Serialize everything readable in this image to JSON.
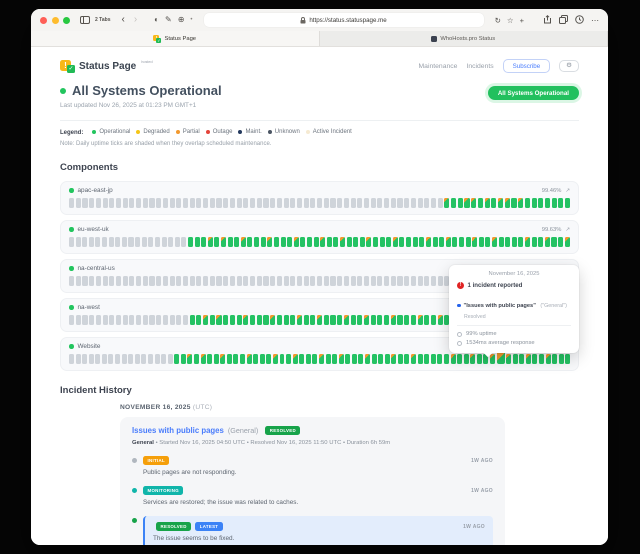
{
  "browser": {
    "tabs_count": "2 Tabs",
    "url": "https://status.statuspage.me",
    "tab1": "Status Page",
    "tab2": "WhoHosts.pro Status"
  },
  "header": {
    "brand": "Status Page",
    "brand_sup": "hosted",
    "nav": {
      "maintenance": "Maintenance",
      "incidents": "Incidents"
    },
    "subscribe_label": "Subscribe",
    "gear_glyph": "⚙",
    "status_pill": "All Systems Operational"
  },
  "hero": {
    "title": "All Systems Operational",
    "last_updated": "Last updated Nov 26, 2025 at 01:23 PM GMT+1"
  },
  "legend": {
    "label": "Legend:",
    "items": [
      {
        "label": "Operational",
        "color": "#22c55e"
      },
      {
        "label": "Degraded",
        "color": "#f5c518"
      },
      {
        "label": "Partial",
        "color": "#f2992e"
      },
      {
        "label": "Outage",
        "color": "#e4443a"
      },
      {
        "label": "Maint.",
        "color": "#24395d"
      },
      {
        "label": "Unknown",
        "color": "#4b5563"
      },
      {
        "label": "Active Incident",
        "color": "#f6ead2"
      }
    ],
    "note": "Note: Daily uptime ticks are shaded when they overlap scheduled maintenance."
  },
  "components": {
    "title": "Components",
    "expand_glyph": "↗",
    "items": [
      {
        "name": "apac-east-jp",
        "percent": "99.46%",
        "ticks": "uuuuuuuuuuuuuuuuuuuuuuuuuuuuuuuuuuuuuuuuuuuuuuuuuuuuuuuusoossosossosooooooo"
      },
      {
        "name": "eu-west-uk",
        "percent": "99.63%",
        "ticks": "uuuuuuuuuuuuuuuuuuooososoosooosooosooosoosooosooosoooosoosooosoosoooosoosoos"
      },
      {
        "name": "na-central-us",
        "percent": "",
        "ticks": "uuuuuuuuuuuuuuuuuuuuuuuuuuuuuuuuuuuuuuuuuuuuuuuuuuuuuuuuuuuuuuuuuuuuuuuuuoo"
      },
      {
        "name": "na-west",
        "percent": "",
        "ticks": "uuuuuuuuuuuuuuuuuuoososooosooosooosoosooosoosooosooosoosooosoosoosooooosoos"
      },
      {
        "name": "Website",
        "percent": "",
        "ticks": "uuuuuuuuuuuuuuuuoososoosooosooosoosooosoosooosooosoosooooosoosooshsoosoosooo"
      }
    ]
  },
  "tooltip": {
    "date": "November 16, 2025",
    "alert_glyph": "!",
    "incident_count": "1 incident reported",
    "incident_title": "\"Issues with public pages\"",
    "incident_scope": "(\"General\")",
    "incident_status": "Resolved",
    "uptime": "99% uptime",
    "response": "1534ms average response"
  },
  "incident_history": {
    "title": "Incident History",
    "date_header": "NOVEMBER 16, 2025",
    "date_suffix": "(UTC)",
    "incident": {
      "title": "Issues with public pages",
      "scope": "(General)",
      "status_badge": "RESOLVED",
      "meta_bold": "General",
      "meta_rest": " • Started Nov 16, 2025 04:50 UTC • Resolved Nov 16, 2025 11:50 UTC • Duration 6h 59m",
      "updates": [
        {
          "badges": [
            {
              "label": "INITIAL",
              "type": "initial"
            }
          ],
          "time": "1W AGO",
          "dot": "#b0b7bf",
          "latest": false,
          "text": "Public pages are not responding."
        },
        {
          "badges": [
            {
              "label": "MONITORING",
              "type": "monitoring"
            }
          ],
          "time": "1W AGO",
          "dot": "#10b5aa",
          "latest": false,
          "text": "Services are restored; the issue was related to caches."
        },
        {
          "badges": [
            {
              "label": "RESOLVED",
              "type": "resolved"
            },
            {
              "label": "LATEST",
              "type": "latest"
            }
          ],
          "time": "1W AGO",
          "dot": "#17a34a",
          "latest": true,
          "text": "The issue seems to be fixed."
        }
      ]
    }
  }
}
